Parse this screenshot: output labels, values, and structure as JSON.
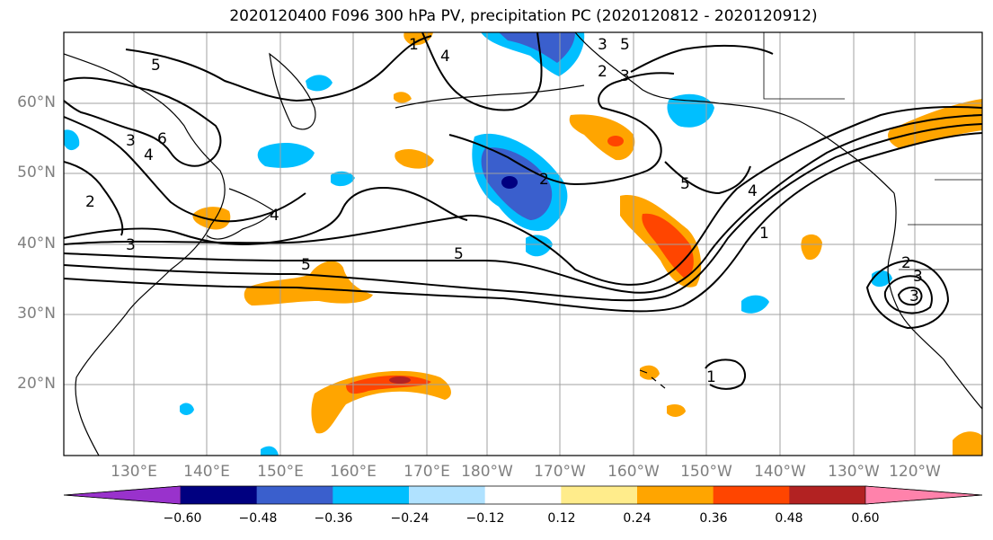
{
  "title": "2020120400 F096 300 hPa PV, precipitation PC (2020120812 - 2020120912)",
  "lat_labels": [
    "60°N",
    "50°N",
    "40°N",
    "30°N",
    "20°N"
  ],
  "lon_labels": [
    "130°E",
    "140°E",
    "150°E",
    "160°E",
    "170°E",
    "180°W",
    "170°W",
    "160°W",
    "150°W",
    "140°W",
    "130°W",
    "120°W"
  ],
  "contour_labels": [
    "5",
    "3",
    "2",
    "6",
    "4",
    "3",
    "4",
    "5",
    "1",
    "4",
    "5",
    "2",
    "3",
    "5",
    "2",
    "3",
    "1",
    "4",
    "5",
    "2",
    "3",
    "3",
    "1"
  ],
  "colorbar": {
    "colors": [
      "#9932CC",
      "#000080",
      "#3A5FCD",
      "#00BFFF",
      "#B0E2FF",
      "#FFFFFF",
      "#FFEC8B",
      "#FFA500",
      "#FF4500",
      "#B22222",
      "#FF82AB"
    ],
    "tick_labels": [
      "−0.60",
      "−0.48",
      "−0.36",
      "−0.24",
      "−0.12",
      "0.12",
      "0.24",
      "0.36",
      "0.48",
      "0.60"
    ]
  }
}
